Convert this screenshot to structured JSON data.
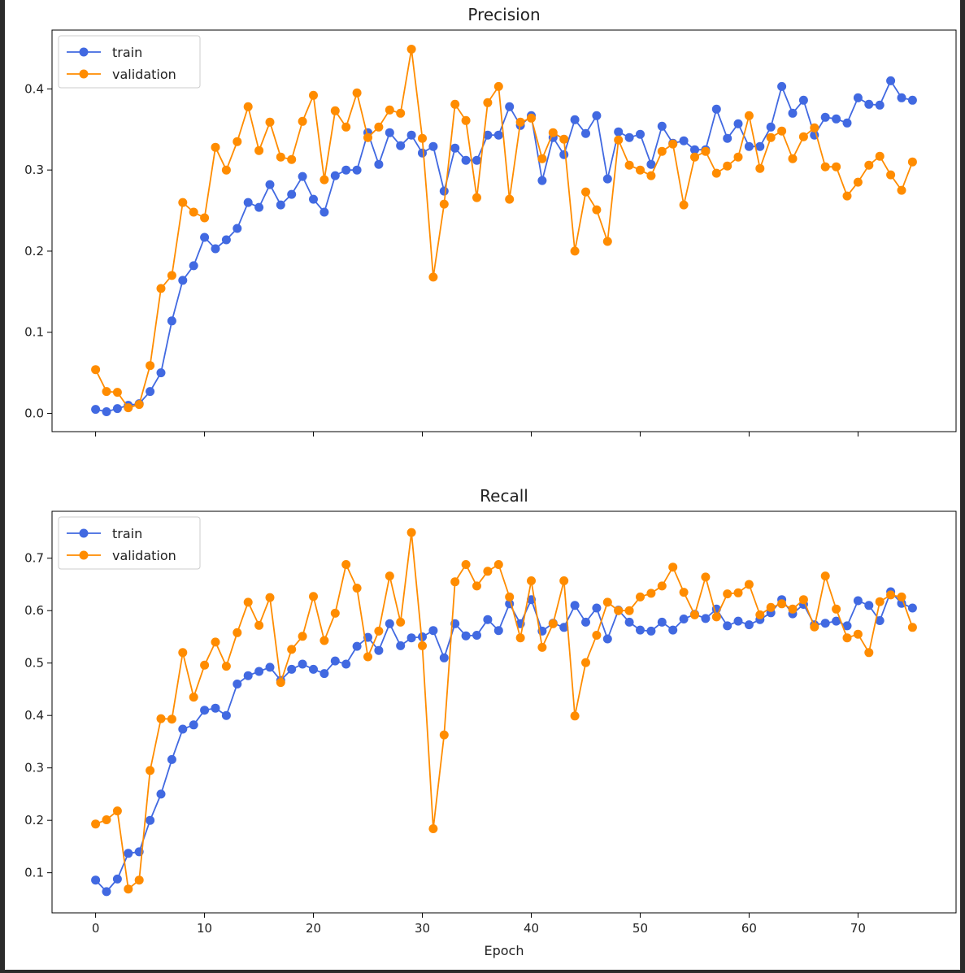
{
  "colors": {
    "train": "#4169e1",
    "validation": "#ff8c00",
    "axis": "#000000"
  },
  "chart_data": [
    {
      "type": "line",
      "title": "Precision",
      "xlabel": "",
      "ylabel": "",
      "xlim": [
        -4,
        79
      ],
      "ylim": [
        -0.0225,
        0.4725
      ],
      "yticks": [
        0.0,
        0.1,
        0.2,
        0.3,
        0.4
      ],
      "ytick_labels": [
        "0.0",
        "0.1",
        "0.2",
        "0.3",
        "0.4"
      ],
      "xticks": [
        0,
        10,
        20,
        30,
        40,
        50,
        60,
        70
      ],
      "xtick_labels": [],
      "grid": false,
      "legend": "upper-left",
      "x": [
        0,
        1,
        2,
        3,
        4,
        5,
        6,
        7,
        8,
        9,
        10,
        11,
        12,
        13,
        14,
        15,
        16,
        17,
        18,
        19,
        20,
        21,
        22,
        23,
        24,
        25,
        26,
        27,
        28,
        29,
        30,
        31,
        32,
        33,
        34,
        35,
        36,
        37,
        38,
        39,
        40,
        41,
        42,
        43,
        44,
        45,
        46,
        47,
        48,
        49,
        50,
        51,
        52,
        53,
        54,
        55,
        56,
        57,
        58,
        59,
        60,
        61,
        62,
        63,
        64,
        65,
        66,
        67,
        68,
        69,
        70,
        71,
        72,
        73,
        74,
        75
      ],
      "series": [
        {
          "name": "train",
          "color_key": "train",
          "values": [
            0.005,
            0.002,
            0.006,
            0.01,
            0.012,
            0.027,
            0.05,
            0.114,
            0.164,
            0.182,
            0.217,
            0.203,
            0.214,
            0.228,
            0.26,
            0.254,
            0.282,
            0.257,
            0.27,
            0.292,
            0.264,
            0.248,
            0.293,
            0.3,
            0.3,
            0.346,
            0.307,
            0.346,
            0.33,
            0.343,
            0.321,
            0.329,
            0.274,
            0.327,
            0.312,
            0.312,
            0.343,
            0.343,
            0.378,
            0.355,
            0.367,
            0.287,
            0.34,
            0.319,
            0.362,
            0.345,
            0.367,
            0.289,
            0.347,
            0.34,
            0.344,
            0.307,
            0.354,
            0.333,
            0.336,
            0.325,
            0.325,
            0.375,
            0.339,
            0.357,
            0.329,
            0.329,
            0.353,
            0.403,
            0.37,
            0.386,
            0.343,
            0.365,
            0.363,
            0.358,
            0.389,
            0.381,
            0.38,
            0.41,
            0.389,
            0.386
          ]
        },
        {
          "name": "validation",
          "color_key": "validation",
          "values": [
            0.054,
            0.027,
            0.026,
            0.007,
            0.011,
            0.059,
            0.154,
            0.17,
            0.26,
            0.248,
            0.241,
            0.328,
            0.3,
            0.335,
            0.378,
            0.324,
            0.359,
            0.316,
            0.313,
            0.36,
            0.392,
            0.288,
            0.373,
            0.353,
            0.395,
            0.34,
            0.353,
            0.374,
            0.37,
            0.449,
            0.339,
            0.168,
            0.258,
            0.381,
            0.361,
            0.266,
            0.383,
            0.403,
            0.264,
            0.359,
            0.364,
            0.314,
            0.346,
            0.338,
            0.2,
            0.273,
            0.251,
            0.212,
            0.337,
            0.306,
            0.3,
            0.293,
            0.323,
            0.332,
            0.257,
            0.316,
            0.323,
            0.296,
            0.305,
            0.316,
            0.367,
            0.302,
            0.34,
            0.348,
            0.314,
            0.341,
            0.352,
            0.304,
            0.304,
            0.268,
            0.285,
            0.306,
            0.317,
            0.294,
            0.275,
            0.31
          ]
        }
      ]
    },
    {
      "type": "line",
      "title": "Recall",
      "xlabel": "Epoch",
      "ylabel": "",
      "xlim": [
        -4,
        79
      ],
      "ylim": [
        0.0235,
        0.7895
      ],
      "yticks": [
        0.1,
        0.2,
        0.3,
        0.4,
        0.5,
        0.6,
        0.7
      ],
      "ytick_labels": [
        "0.1",
        "0.2",
        "0.3",
        "0.4",
        "0.5",
        "0.6",
        "0.7"
      ],
      "xticks": [
        0,
        10,
        20,
        30,
        40,
        50,
        60,
        70
      ],
      "xtick_labels": [
        "0",
        "10",
        "20",
        "30",
        "40",
        "50",
        "60",
        "70"
      ],
      "grid": false,
      "legend": "upper-left",
      "x": [
        0,
        1,
        2,
        3,
        4,
        5,
        6,
        7,
        8,
        9,
        10,
        11,
        12,
        13,
        14,
        15,
        16,
        17,
        18,
        19,
        20,
        21,
        22,
        23,
        24,
        25,
        26,
        27,
        28,
        29,
        30,
        31,
        32,
        33,
        34,
        35,
        36,
        37,
        38,
        39,
        40,
        41,
        42,
        43,
        44,
        45,
        46,
        47,
        48,
        49,
        50,
        51,
        52,
        53,
        54,
        55,
        56,
        57,
        58,
        59,
        60,
        61,
        62,
        63,
        64,
        65,
        66,
        67,
        68,
        69,
        70,
        71,
        72,
        73,
        74,
        75
      ],
      "series": [
        {
          "name": "train",
          "color_key": "train",
          "values": [
            0.086,
            0.064,
            0.088,
            0.137,
            0.14,
            0.2,
            0.25,
            0.316,
            0.374,
            0.382,
            0.41,
            0.414,
            0.4,
            0.46,
            0.476,
            0.484,
            0.492,
            0.467,
            0.488,
            0.498,
            0.488,
            0.48,
            0.504,
            0.498,
            0.532,
            0.549,
            0.524,
            0.575,
            0.533,
            0.548,
            0.55,
            0.562,
            0.51,
            0.575,
            0.552,
            0.553,
            0.583,
            0.562,
            0.613,
            0.575,
            0.621,
            0.561,
            0.576,
            0.568,
            0.61,
            0.578,
            0.605,
            0.546,
            0.601,
            0.578,
            0.563,
            0.561,
            0.578,
            0.563,
            0.584,
            0.593,
            0.585,
            0.603,
            0.571,
            0.58,
            0.573,
            0.583,
            0.596,
            0.621,
            0.594,
            0.612,
            0.573,
            0.576,
            0.58,
            0.571,
            0.619,
            0.61,
            0.581,
            0.636,
            0.614,
            0.605
          ]
        },
        {
          "name": "validation",
          "color_key": "validation",
          "values": [
            0.193,
            0.201,
            0.218,
            0.069,
            0.086,
            0.295,
            0.394,
            0.393,
            0.52,
            0.435,
            0.496,
            0.54,
            0.494,
            0.558,
            0.616,
            0.572,
            0.625,
            0.463,
            0.526,
            0.551,
            0.627,
            0.543,
            0.595,
            0.688,
            0.643,
            0.512,
            0.561,
            0.666,
            0.578,
            0.749,
            0.533,
            0.184,
            0.363,
            0.655,
            0.688,
            0.647,
            0.675,
            0.688,
            0.626,
            0.548,
            0.657,
            0.53,
            0.575,
            0.657,
            0.399,
            0.501,
            0.553,
            0.616,
            0.6,
            0.6,
            0.626,
            0.633,
            0.647,
            0.683,
            0.635,
            0.592,
            0.664,
            0.588,
            0.632,
            0.634,
            0.65,
            0.592,
            0.606,
            0.613,
            0.603,
            0.621,
            0.569,
            0.666,
            0.603,
            0.548,
            0.555,
            0.52,
            0.617,
            0.63,
            0.626,
            0.568
          ]
        }
      ]
    }
  ]
}
